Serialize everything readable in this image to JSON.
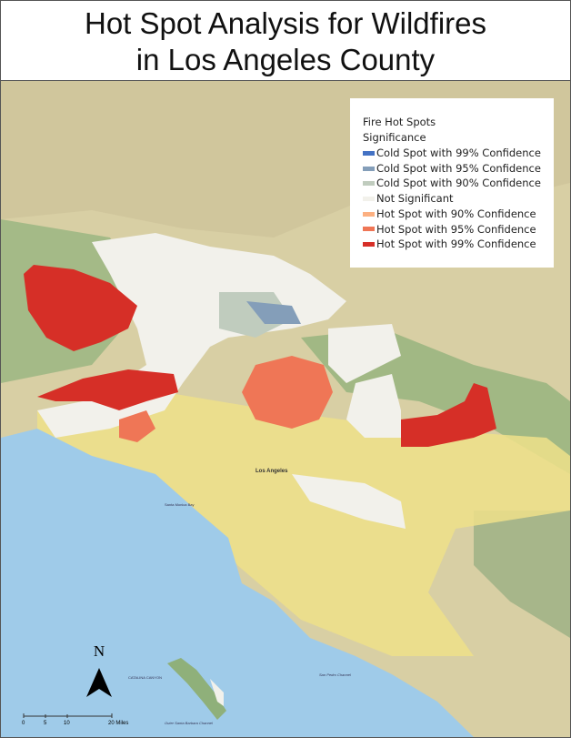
{
  "title": {
    "line1": "Hot Spot Analysis for Wildfires",
    "line2": "in Los Angeles County"
  },
  "legend": {
    "layer": "Fire Hot Spots",
    "field": "Significance",
    "items": [
      {
        "label": "Cold Spot with 99% Confidence",
        "color": "#4472c4"
      },
      {
        "label": "Cold Spot with 95% Confidence",
        "color": "#849eb9"
      },
      {
        "label": "Cold Spot with 90% Confidence",
        "color": "#c0ccbe"
      },
      {
        "label": "Not Significant",
        "color": "#f2f1eb"
      },
      {
        "label": "Hot Spot with 90% Confidence",
        "color": "#fcb081"
      },
      {
        "label": "Hot Spot with 95% Confidence",
        "color": "#ef7656"
      },
      {
        "label": "Hot Spot with 99% Confidence",
        "color": "#d62f27"
      }
    ]
  },
  "north_arrow": {
    "label": "N"
  },
  "scale_bar": {
    "ticks": [
      "0",
      "5",
      "10",
      "20 Miles"
    ]
  },
  "map_labels": {
    "city": "Los Angeles",
    "bay": "Santa Monica Bay",
    "island": "CATALINA CANYON",
    "channel": "San Pedro Channel",
    "outer": "Outer Santa Barbara Channel"
  },
  "colors": {
    "ocean": "#9fcbe9",
    "land": "#d8cfa4",
    "urban": "#efe08a",
    "forest": "#8fb07a"
  }
}
